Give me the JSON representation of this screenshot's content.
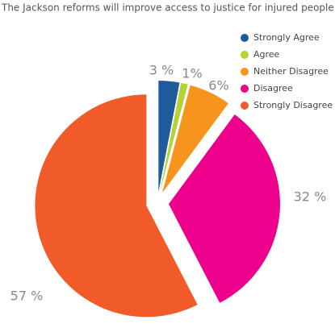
{
  "chart_data": {
    "type": "pie",
    "title": "The Jackson reforms will improve access to justice for injured people",
    "categories": [
      "Strongly Agree",
      "Agree",
      "Neither Disagree",
      "Disagree",
      "Strongly Disagree"
    ],
    "values": [
      3,
      1,
      6,
      32,
      57
    ],
    "value_labels": [
      "3 %",
      "1%",
      "6%",
      "32 %",
      "57 %"
    ],
    "colors": [
      "#1f5a9a",
      "#b5d334",
      "#f7941d",
      "#ec008c",
      "#f15a29"
    ],
    "legend": "top-right"
  }
}
